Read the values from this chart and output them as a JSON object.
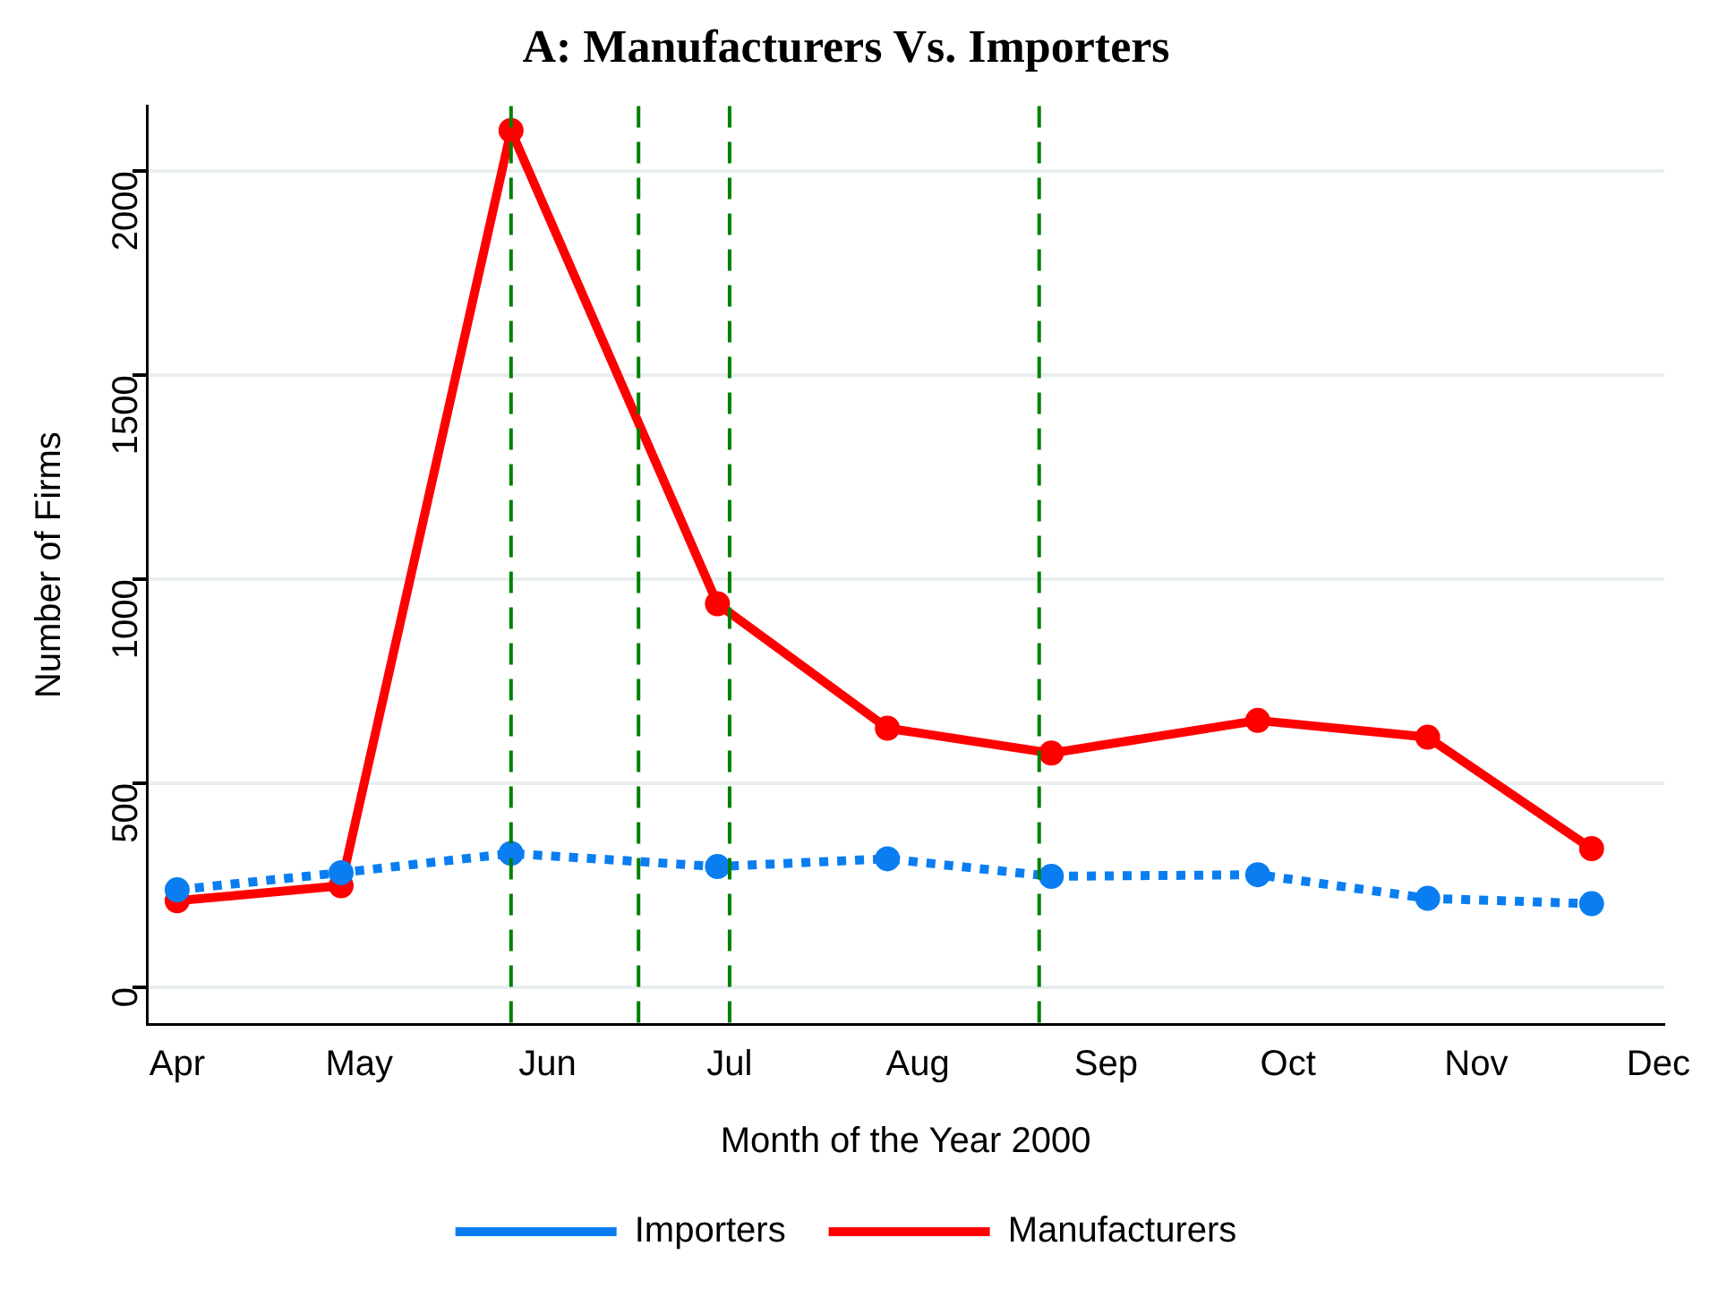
{
  "chart_data": {
    "type": "line",
    "title": "A: Manufacturers Vs. Importers",
    "xlabel": "Month of the Year 2000",
    "ylabel": "Number of Firms",
    "x": [
      "2000-04-01",
      "2000-04-28",
      "2000-05-26",
      "2000-06-29",
      "2000-07-27",
      "2000-08-23",
      "2000-09-26",
      "2000-10-24",
      "2000-11-20"
    ],
    "series": [
      {
        "name": "Manufacturers",
        "color": "#ff0000",
        "line_style": "solid",
        "values": [
          212,
          249,
          2100,
          940,
          635,
          574,
          654,
          613,
          340
        ]
      },
      {
        "name": "Importers",
        "color": "#0a7ef0",
        "line_style": "dotted",
        "values": [
          239,
          281,
          328,
          296,
          315,
          272,
          276,
          218,
          205
        ]
      }
    ],
    "xlim": [
      "2000-03-27",
      "2000-12-02"
    ],
    "xticks": [
      {
        "value": "2000-04-01",
        "label": "Apr"
      },
      {
        "value": "2000-05-01",
        "label": "May"
      },
      {
        "value": "2000-06-01",
        "label": "Jun"
      },
      {
        "value": "2000-07-01",
        "label": "Jul"
      },
      {
        "value": "2000-08-01",
        "label": "Aug"
      },
      {
        "value": "2000-09-01",
        "label": "Sep"
      },
      {
        "value": "2000-10-01",
        "label": "Oct"
      },
      {
        "value": "2000-11-01",
        "label": "Nov"
      },
      {
        "value": "2000-12-01",
        "label": "Dec"
      }
    ],
    "ylim": [
      -90,
      2160
    ],
    "yticks": [
      0,
      500,
      1000,
      1500,
      2000
    ],
    "ref_lines": [
      {
        "axis": "x",
        "value": "2000-05-26",
        "color": "#008000",
        "line_style": "dashed"
      },
      {
        "axis": "x",
        "value": "2000-06-16",
        "color": "#008000",
        "line_style": "dashed"
      },
      {
        "axis": "x",
        "value": "2000-07-01",
        "color": "#008000",
        "line_style": "dashed"
      },
      {
        "axis": "x",
        "value": "2000-08-21",
        "color": "#008000",
        "line_style": "dashed"
      }
    ],
    "grid": "y",
    "legend": "bottom",
    "marker": "circle"
  }
}
